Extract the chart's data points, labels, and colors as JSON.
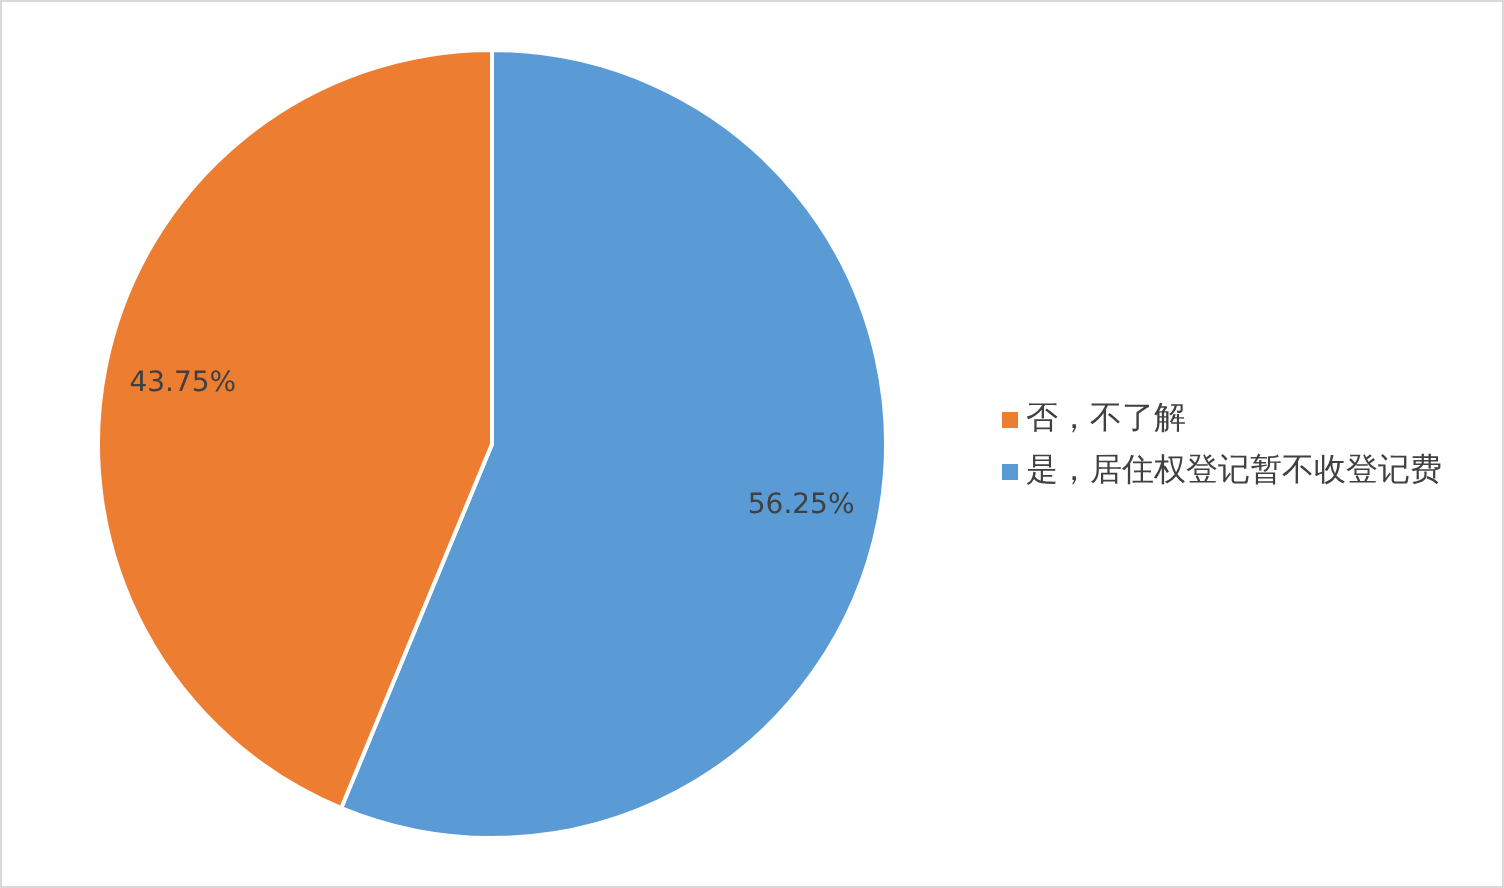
{
  "chart_data": {
    "type": "pie",
    "categories": [
      "是，居住权登记暂不收登记费",
      "否，不了解"
    ],
    "values": [
      56.25,
      43.75
    ],
    "colors": [
      "#5b9bd5",
      "#ed7d31"
    ],
    "value_labels": [
      "56.25%",
      "43.75%"
    ],
    "legend": "right"
  }
}
